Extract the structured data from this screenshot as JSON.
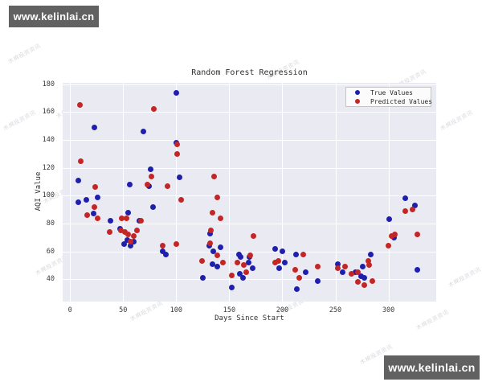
{
  "badges": {
    "site_text": "www.kelinlai.cn",
    "bg_color": "#616161",
    "text_color": "#ffffff"
  },
  "diagonal_watermark": {
    "text": "木棉投资资讯",
    "color": "#bfc2ca"
  },
  "chart_data": {
    "type": "scatter",
    "title": "Random Forest Regression",
    "xlabel": "Days Since Start",
    "ylabel": "AQI Value",
    "xlim": [
      -7,
      345
    ],
    "ylim": [
      24,
      181
    ],
    "xticks": [
      0,
      50,
      100,
      150,
      200,
      250,
      300
    ],
    "yticks": [
      40,
      60,
      80,
      100,
      120,
      140,
      160,
      180
    ],
    "grid": true,
    "plot_bg_color": "#eaeaf2",
    "grid_color": "#ffffff",
    "legend": {
      "position": "upper right"
    },
    "series": [
      {
        "name": "True Values",
        "color": "#1f1fae",
        "points": [
          [
            8,
            95
          ],
          [
            8,
            111
          ],
          [
            15,
            97
          ],
          [
            22,
            87
          ],
          [
            23,
            149
          ],
          [
            26,
            99
          ],
          [
            38,
            82
          ],
          [
            47,
            76
          ],
          [
            51,
            65
          ],
          [
            54,
            68
          ],
          [
            55,
            88
          ],
          [
            56,
            108
          ],
          [
            57,
            64
          ],
          [
            60,
            67
          ],
          [
            65,
            82
          ],
          [
            69,
            146
          ],
          [
            74,
            107
          ],
          [
            76,
            119
          ],
          [
            78,
            92
          ],
          [
            87,
            60
          ],
          [
            90,
            58
          ],
          [
            100,
            174
          ],
          [
            100,
            138
          ],
          [
            103,
            113
          ],
          [
            125,
            41
          ],
          [
            131,
            64
          ],
          [
            132,
            73
          ],
          [
            134,
            51
          ],
          [
            135,
            60
          ],
          [
            139,
            49
          ],
          [
            142,
            63
          ],
          [
            152,
            34
          ],
          [
            159,
            58
          ],
          [
            161,
            56
          ],
          [
            160,
            44
          ],
          [
            163,
            41
          ],
          [
            168,
            52
          ],
          [
            169,
            56
          ],
          [
            172,
            48
          ],
          [
            193,
            62
          ],
          [
            197,
            48
          ],
          [
            200,
            60
          ],
          [
            202,
            52
          ],
          [
            213,
            58
          ],
          [
            214,
            33
          ],
          [
            222,
            45
          ],
          [
            233,
            39
          ],
          [
            252,
            51
          ],
          [
            257,
            45
          ],
          [
            269,
            45
          ],
          [
            274,
            42
          ],
          [
            276,
            49
          ],
          [
            277,
            41
          ],
          [
            283,
            58
          ],
          [
            301,
            83
          ],
          [
            305,
            70
          ],
          [
            316,
            98
          ],
          [
            325,
            93
          ],
          [
            327,
            47
          ]
        ]
      },
      {
        "name": "Predicted Values",
        "color": "#c42626",
        "points": [
          [
            9,
            165
          ],
          [
            10,
            125
          ],
          [
            16,
            86
          ],
          [
            23,
            92
          ],
          [
            24,
            106
          ],
          [
            26,
            84
          ],
          [
            37,
            74
          ],
          [
            48,
            75
          ],
          [
            49,
            84
          ],
          [
            52,
            74
          ],
          [
            53,
            84
          ],
          [
            55,
            72
          ],
          [
            57,
            67
          ],
          [
            60,
            71
          ],
          [
            63,
            75
          ],
          [
            67,
            82
          ],
          [
            73,
            108
          ],
          [
            77,
            114
          ],
          [
            79,
            162
          ],
          [
            87,
            64
          ],
          [
            92,
            107
          ],
          [
            100,
            65
          ],
          [
            101,
            137
          ],
          [
            101,
            130
          ],
          [
            105,
            97
          ],
          [
            124,
            53
          ],
          [
            132,
            66
          ],
          [
            133,
            75
          ],
          [
            134,
            88
          ],
          [
            136,
            114
          ],
          [
            139,
            99
          ],
          [
            139,
            57
          ],
          [
            142,
            84
          ],
          [
            144,
            52
          ],
          [
            152,
            43
          ],
          [
            158,
            52
          ],
          [
            164,
            50
          ],
          [
            166,
            45
          ],
          [
            170,
            57
          ],
          [
            173,
            71
          ],
          [
            193,
            52
          ],
          [
            196,
            53
          ],
          [
            212,
            47
          ],
          [
            216,
            41
          ],
          [
            220,
            58
          ],
          [
            233,
            49
          ],
          [
            252,
            48
          ],
          [
            259,
            49
          ],
          [
            265,
            44
          ],
          [
            271,
            45
          ],
          [
            271,
            38
          ],
          [
            277,
            36
          ],
          [
            281,
            53
          ],
          [
            282,
            50
          ],
          [
            285,
            39
          ],
          [
            300,
            64
          ],
          [
            303,
            71
          ],
          [
            306,
            72
          ],
          [
            316,
            89
          ],
          [
            323,
            90
          ],
          [
            327,
            72
          ]
        ]
      }
    ]
  }
}
